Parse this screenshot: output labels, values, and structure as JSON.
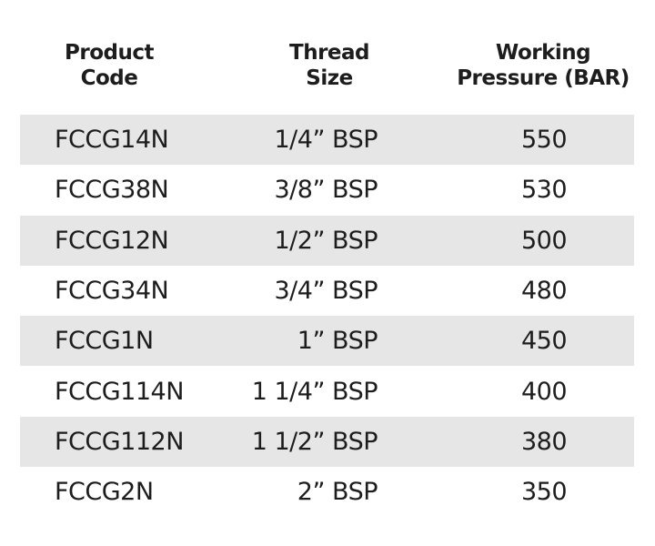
{
  "table": {
    "header": [
      [
        "Product",
        "Code"
      ],
      [
        "Thread",
        "Size"
      ],
      [
        "Working",
        "Pressure (BAR)"
      ]
    ],
    "rows": [
      [
        "FCCG14N",
        "1/4” BSP",
        550
      ],
      [
        "FCCG38N",
        "3/8” BSP",
        530
      ],
      [
        "FCCG12N",
        "1/2” BSP",
        500
      ],
      [
        "FCCG34N",
        "3/4” BSP",
        480
      ],
      [
        "FCCG1N",
        "1” BSP",
        450
      ],
      [
        "FCCG114N",
        "1 1/4” BSP",
        400
      ],
      [
        "FCCG112N",
        "1 1/2” BSP",
        380
      ],
      [
        "FCCG2N",
        "2” BSP",
        350
      ]
    ]
  }
}
